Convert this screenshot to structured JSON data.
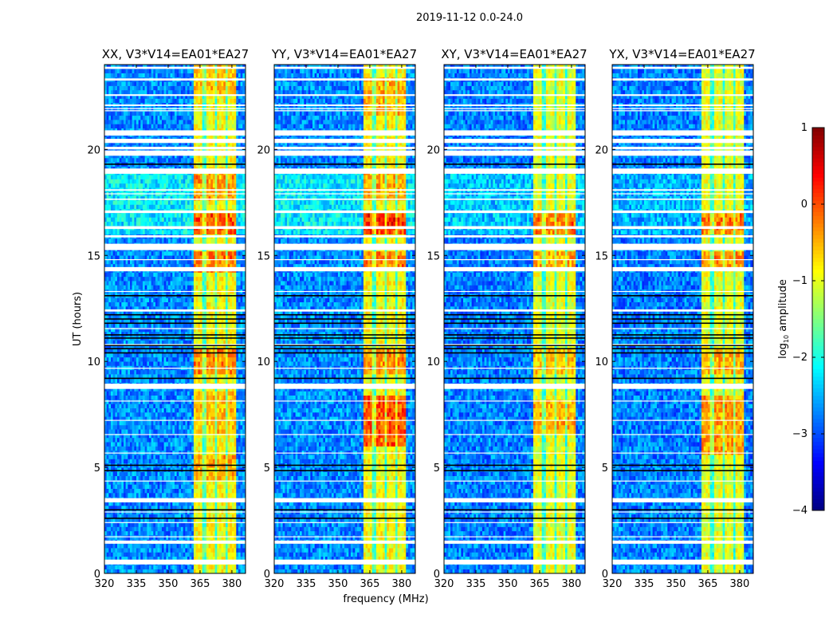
{
  "chart_data": {
    "type": "heatmap",
    "title": "2019-11-12 0.0-24.0",
    "xlabel": "frequency (MHz)",
    "ylabel": "UT (hours)",
    "xlim": [
      320,
      386.4
    ],
    "ylim": [
      0,
      24
    ],
    "xticks": [
      320,
      335,
      350,
      365,
      380
    ],
    "yticks": [
      0,
      5,
      10,
      15,
      20
    ],
    "colorbar": {
      "label_prefix": "log",
      "label_sub": "10",
      "label_suffix": " amplitude",
      "range": [
        -4,
        1
      ],
      "ticks": [
        1,
        0,
        -1,
        -2,
        -3,
        -4
      ],
      "tick_labels": [
        "1",
        "0",
        "−1",
        "−2",
        "−3",
        "−4"
      ],
      "colormap": "jet"
    },
    "rfi_band_mhz": [
      361.6,
      382.2
    ],
    "subband_edges_mhz": [
      367,
      372.3,
      377.2
    ],
    "flagged_hours": [
      [
        23.8,
        23.9
      ],
      [
        23.25,
        23.35
      ],
      [
        22.52,
        22.6
      ],
      [
        22.05,
        22.12
      ],
      [
        21.9,
        21.95
      ],
      [
        21.8,
        21.85
      ],
      [
        20.65,
        20.9
      ],
      [
        20.3,
        20.5
      ],
      [
        20.0,
        20.12
      ],
      [
        19.7,
        19.95
      ],
      [
        18.85,
        19.1
      ],
      [
        18.05,
        18.12
      ],
      [
        17.88,
        17.93
      ],
      [
        17.62,
        17.68
      ],
      [
        17.0,
        17.12
      ],
      [
        16.25,
        16.38
      ],
      [
        15.85,
        15.95
      ],
      [
        15.25,
        15.55
      ],
      [
        14.78,
        14.82
      ],
      [
        14.25,
        14.45
      ],
      [
        13.28,
        13.32
      ],
      [
        12.35,
        12.45
      ],
      [
        11.52,
        11.57
      ],
      [
        10.78,
        10.82
      ],
      [
        9.65,
        9.7
      ],
      [
        8.7,
        8.95
      ],
      [
        8.11,
        8.15
      ],
      [
        7.2,
        7.24
      ],
      [
        6.53,
        6.57
      ],
      [
        5.66,
        5.7
      ],
      [
        4.34,
        4.38
      ],
      [
        3.35,
        3.55
      ],
      [
        2.88,
        2.92
      ],
      [
        2.38,
        2.42
      ],
      [
        1.71,
        1.75
      ],
      [
        1.4,
        1.55
      ],
      [
        0.42,
        0.65
      ]
    ],
    "dropout_hours": [
      12.2,
      12.0,
      11.8,
      11.25,
      11.1,
      10.75,
      10.6,
      10.4,
      9.2,
      5.1,
      4.85,
      3.0,
      2.6,
      19.3,
      13.1
    ],
    "panels": [
      {
        "title": "XX, V3*V14=EA01*EA27",
        "background_log_amp": -2.7,
        "band_log_amp": -0.9,
        "bright_background": {
          "hours": [
            16.0,
            19.0
          ],
          "log_amp": -2.2
        },
        "enhanced": [
          {
            "hours": [
              15.9,
              17.0
            ],
            "delta": 1.0
          },
          {
            "hours": [
              17.6,
              19.0
            ],
            "delta": 0.6
          },
          {
            "hours": [
              14.2,
              15.1
            ],
            "delta": 0.8
          },
          {
            "hours": [
              9.4,
              10.5
            ],
            "delta": 0.7
          },
          {
            "hours": [
              4.4,
              5.6
            ],
            "delta": 0.5
          },
          {
            "hours": [
              22.5,
              23.9
            ],
            "delta": 0.4
          },
          {
            "hours": [
              6.6,
              8.7
            ],
            "delta": 0.4
          }
        ]
      },
      {
        "title": "YY, V3*V14=EA01*EA27",
        "background_log_amp": -2.7,
        "band_log_amp": -0.9,
        "bright_background": {
          "hours": [
            16.0,
            19.0
          ],
          "log_amp": -2.2
        },
        "enhanced": [
          {
            "hours": [
              15.9,
              17.0
            ],
            "delta": 1.2
          },
          {
            "hours": [
              6.0,
              8.5
            ],
            "delta": 1.0
          },
          {
            "hours": [
              14.3,
              15.1
            ],
            "delta": 0.8
          },
          {
            "hours": [
              9.4,
              10.5
            ],
            "delta": 0.7
          },
          {
            "hours": [
              17.6,
              19.0
            ],
            "delta": 0.5
          },
          {
            "hours": [
              21.5,
              23.3
            ],
            "delta": 0.5
          }
        ]
      },
      {
        "title": "XY, V3*V14=EA01*EA27",
        "background_log_amp": -2.75,
        "band_log_amp": -1.0,
        "bright_background": {
          "hours": [
            16.0,
            19.0
          ],
          "log_amp": -2.4
        },
        "enhanced": [
          {
            "hours": [
              15.9,
              17.0
            ],
            "delta": 0.9
          },
          {
            "hours": [
              6.6,
              8.3
            ],
            "delta": 0.6
          },
          {
            "hours": [
              14.3,
              15.1
            ],
            "delta": 0.6
          },
          {
            "hours": [
              9.4,
              10.5
            ],
            "delta": 0.5
          }
        ]
      },
      {
        "title": "YX, V3*V14=EA01*EA27",
        "background_log_amp": -2.75,
        "band_log_amp": -1.0,
        "bright_background": {
          "hours": [
            16.0,
            19.0
          ],
          "log_amp": -2.5
        },
        "enhanced": [
          {
            "hours": [
              15.9,
              17.0
            ],
            "delta": 0.9
          },
          {
            "hours": [
              5.7,
              8.5
            ],
            "delta": 0.7
          },
          {
            "hours": [
              14.3,
              15.1
            ],
            "delta": 0.7
          },
          {
            "hours": [
              9.4,
              10.5
            ],
            "delta": 0.6
          }
        ]
      }
    ]
  }
}
